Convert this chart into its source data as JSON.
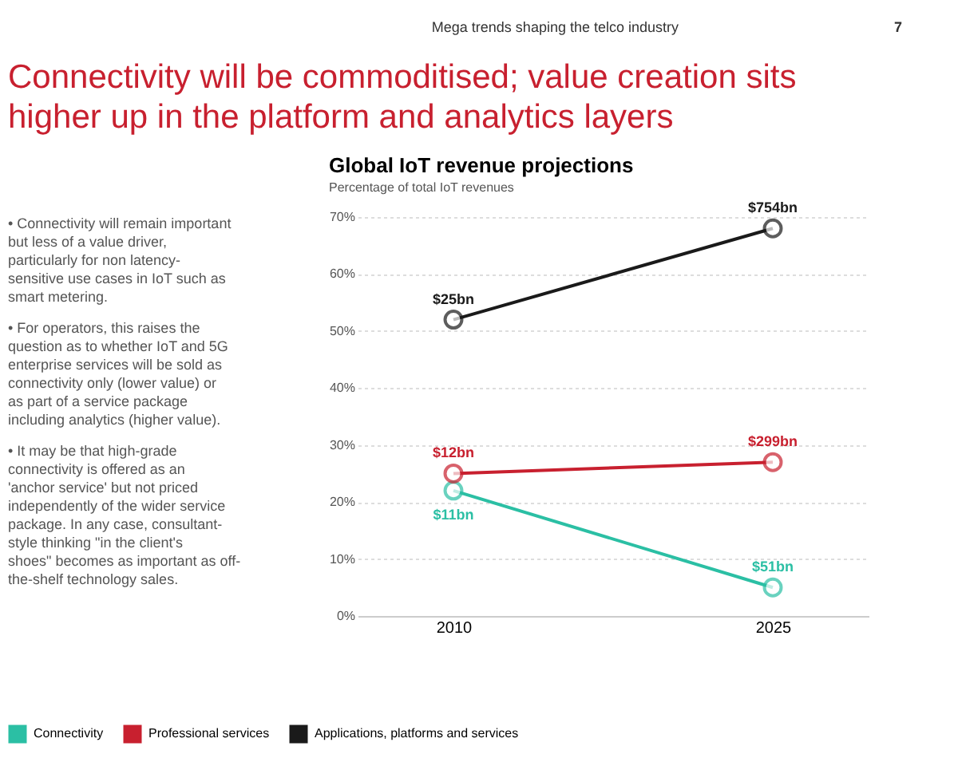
{
  "chart_data": {
    "type": "line",
    "title": "Global IoT revenue projections",
    "subtitle": "Percentage of total IoT revenues",
    "annotations": [
      "Mega trends shaping the telco industry",
      "7",
      "Connectivity will be commoditised; value creation sits higher up in the platform and analytics layers",
      "• Connectivity will remain important but less of a value driver, particularly for non latency-sensitive use cases in IoT such as smart metering.",
      "• For operators, this raises the question as to whether IoT and 5G enterprise services will be sold as connectivity only (lower value) or as part of a service package including analytics (higher value).",
      "• It may be that high-grade connectivity is offered as an 'anchor service' but not priced independently of the wider service package. In any case, consultant-style thinking \"in the client's shoes\" becomes as important as off-the-shelf technology sales.",
      {
        "text": "$11bn",
        "x": "2010",
        "y": 22
      },
      {
        "text": "$51bn",
        "x": "2025",
        "y": 5
      },
      {
        "text": "$12bn",
        "x": "2010",
        "y": 25
      },
      {
        "text": "$299bn",
        "x": "2025",
        "y": 27
      },
      {
        "text": "$25bn",
        "x": "2010",
        "y": 52
      },
      {
        "text": "$754bn",
        "x": "2025",
        "y": 68
      }
    ],
    "categories": [
      "2010",
      "2025"
    ],
    "series": [
      {
        "name": "Connectivity",
        "color": "#2bbfa4",
        "values": [
          22,
          5
        ]
      },
      {
        "name": "Professional services",
        "color": "#c8202f",
        "values": [
          25,
          27
        ]
      },
      {
        "name": "Applications, platforms and services",
        "color": "#1a1a1a",
        "values": [
          52,
          68
        ]
      }
    ],
    "ylim": [
      0,
      70
    ],
    "yticks": [
      {
        "value": 0,
        "label": "0%"
      },
      {
        "value": 10,
        "label": "10%"
      },
      {
        "value": 20,
        "label": "20%"
      },
      {
        "value": 30,
        "label": "30%"
      },
      {
        "value": 40,
        "label": "40%"
      },
      {
        "value": 50,
        "label": "50%"
      },
      {
        "value": 60,
        "label": "60%"
      },
      {
        "value": 70,
        "label": "70%"
      }
    ],
    "grid": "y",
    "legend": "bottom",
    "marker": "circle",
    "line_style": "solid"
  }
}
